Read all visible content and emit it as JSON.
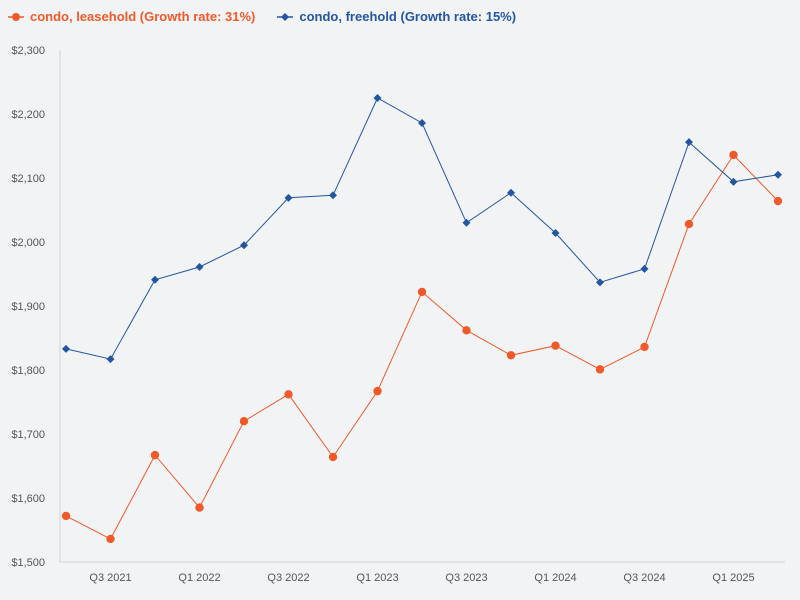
{
  "chart_data": {
    "type": "line",
    "title": "",
    "xlabel": "",
    "ylabel": "",
    "categories": [
      "Q2 2021",
      "Q3 2021",
      "Q4 2021",
      "Q1 2022",
      "Q2 2022",
      "Q3 2022",
      "Q4 2022",
      "Q1 2023",
      "Q2 2023",
      "Q3 2023",
      "Q4 2023",
      "Q1 2024",
      "Q2 2024",
      "Q3 2024",
      "Q4 2024",
      "Q1 2025",
      "Q2 2025"
    ],
    "x_tick_labels": [
      "Q3 2021",
      "Q1 2022",
      "Q3 2022",
      "Q1 2023",
      "Q3 2023",
      "Q1 2024",
      "Q3 2024",
      "Q1 2025"
    ],
    "ylim": [
      1500,
      2300
    ],
    "y_ticks": [
      1500,
      1600,
      1700,
      1800,
      1900,
      2000,
      2100,
      2200,
      2300
    ],
    "y_tick_labels": [
      "$1,500",
      "$1,600",
      "$1,700",
      "$1,800",
      "$1,900",
      "$2,000",
      "$2,100",
      "$2,200",
      "$2,300"
    ],
    "grid": false,
    "legend_position": "top-left",
    "series": [
      {
        "name": "condo, leasehold",
        "legend_label": "condo, leasehold (Growth rate: 31%)",
        "color": "#f05a28",
        "marker": "circle",
        "values": [
          1572,
          1536,
          1667,
          1585,
          1720,
          1762,
          1664,
          1767,
          1922,
          1862,
          1823,
          1838,
          1801,
          1836,
          2028,
          2136,
          2064
        ]
      },
      {
        "name": "condo, freehold",
        "legend_label": "condo, freehold (Growth rate: 15%)",
        "color": "#2356a0",
        "marker": "diamond",
        "values": [
          1833,
          1817,
          1941,
          1961,
          1995,
          2069,
          2073,
          2225,
          2186,
          2030,
          2077,
          2014,
          1937,
          1958,
          2156,
          2094,
          2105
        ]
      }
    ]
  }
}
